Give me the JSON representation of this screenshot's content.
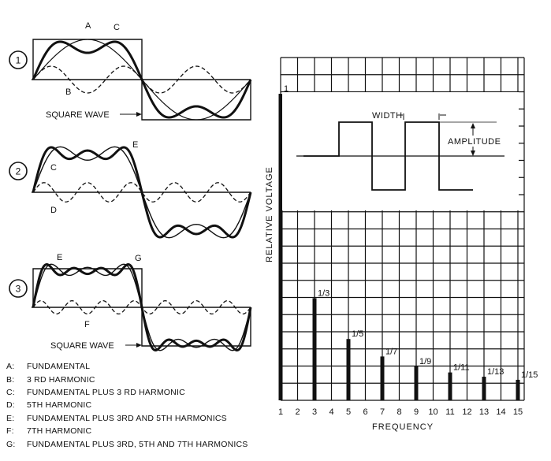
{
  "panels": [
    {
      "number": "1",
      "labels": [
        "A",
        "C",
        "B"
      ],
      "square_wave_label": "SQUARE WAVE"
    },
    {
      "number": "2",
      "labels": [
        "E",
        "C",
        "D"
      ]
    },
    {
      "number": "3",
      "labels": [
        "E",
        "G",
        "F"
      ],
      "square_wave_label": "SQUARE WAVE"
    }
  ],
  "legend": [
    {
      "key": "A:",
      "text": "FUNDAMENTAL"
    },
    {
      "key": "B:",
      "text": "3 RD HARMONIC"
    },
    {
      "key": "C:",
      "text": "FUNDAMENTAL PLUS 3 RD HARMONIC"
    },
    {
      "key": "D:",
      "text": "5TH HARMONIC"
    },
    {
      "key": "E:",
      "text": "FUNDAMENTAL PLUS 3RD AND 5TH HARMONICS"
    },
    {
      "key": "F:",
      "text": "7TH HARMONIC"
    },
    {
      "key": "G:",
      "text": "FUNDAMENTAL PLUS 3RD, 5TH AND 7TH HARMONICS"
    }
  ],
  "inset": {
    "width_label": "WIDTH",
    "amplitude_label": "AMPLITUDE"
  },
  "chart_data": {
    "type": "bar",
    "xlabel": "FREQUENCY",
    "ylabel": "RELATIVE VOLTAGE",
    "x_ticks": [
      "1",
      "2",
      "3",
      "4",
      "5",
      "6",
      "7",
      "8",
      "9",
      "10",
      "11",
      "12",
      "13",
      "14",
      "15"
    ],
    "bars": [
      {
        "x": 1,
        "value": 1,
        "label": "1"
      },
      {
        "x": 3,
        "value": 0.333,
        "label": "1/3"
      },
      {
        "x": 5,
        "value": 0.2,
        "label": "1/5"
      },
      {
        "x": 7,
        "value": 0.143,
        "label": "1/7"
      },
      {
        "x": 9,
        "value": 0.111,
        "label": "1/9"
      },
      {
        "x": 11,
        "value": 0.091,
        "label": "1/11"
      },
      {
        "x": 13,
        "value": 0.077,
        "label": "1/13"
      },
      {
        "x": 15,
        "value": 0.067,
        "label": "1/15"
      }
    ],
    "xlim": [
      1,
      15
    ],
    "ylim": [
      0,
      1
    ],
    "grid": true
  }
}
